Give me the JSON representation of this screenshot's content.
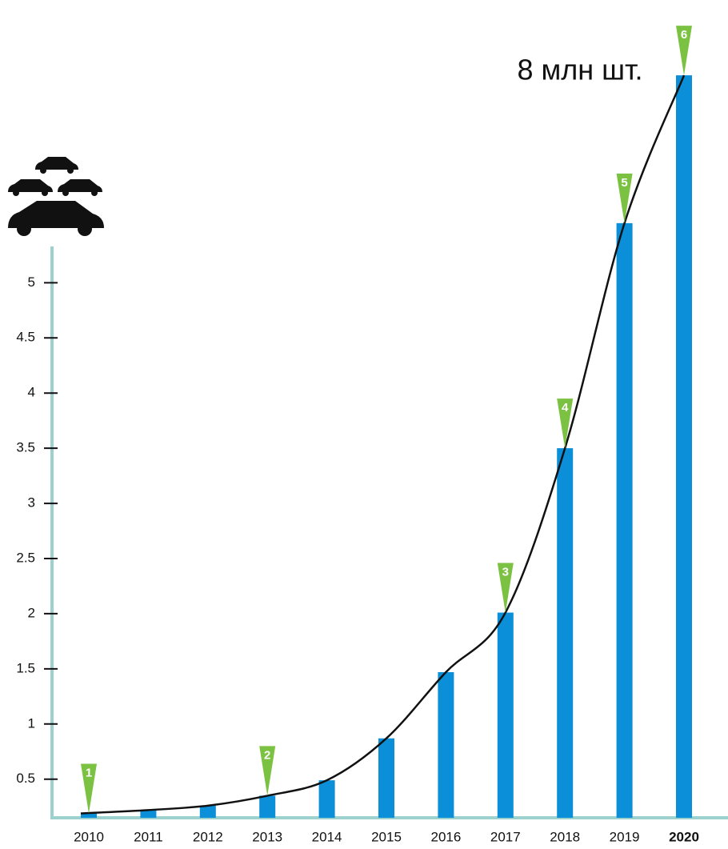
{
  "chart_data": {
    "type": "bar",
    "annotation": "8 млн шт.",
    "categories": [
      "2010",
      "2011",
      "2012",
      "2013",
      "2014",
      "2015",
      "2016",
      "2017",
      "2018",
      "2019",
      "2020"
    ],
    "values": [
      0.19,
      0.22,
      0.26,
      0.35,
      0.49,
      0.87,
      1.47,
      2.01,
      3.5,
      5.54,
      6.88
    ],
    "color": "#0a8fd8",
    "ylim": [
      0.15,
      7.2
    ],
    "yticks": [
      0.5,
      1,
      1.5,
      2,
      2.5,
      3,
      3.5,
      4,
      4.5,
      5
    ],
    "markers": [
      {
        "label": "1",
        "category": "2010"
      },
      {
        "label": "2",
        "category": "2013"
      },
      {
        "label": "3",
        "category": "2017"
      },
      {
        "label": "4",
        "category": "2018"
      },
      {
        "label": "5",
        "category": "2019"
      },
      {
        "label": "6",
        "category": "2020"
      }
    ]
  }
}
